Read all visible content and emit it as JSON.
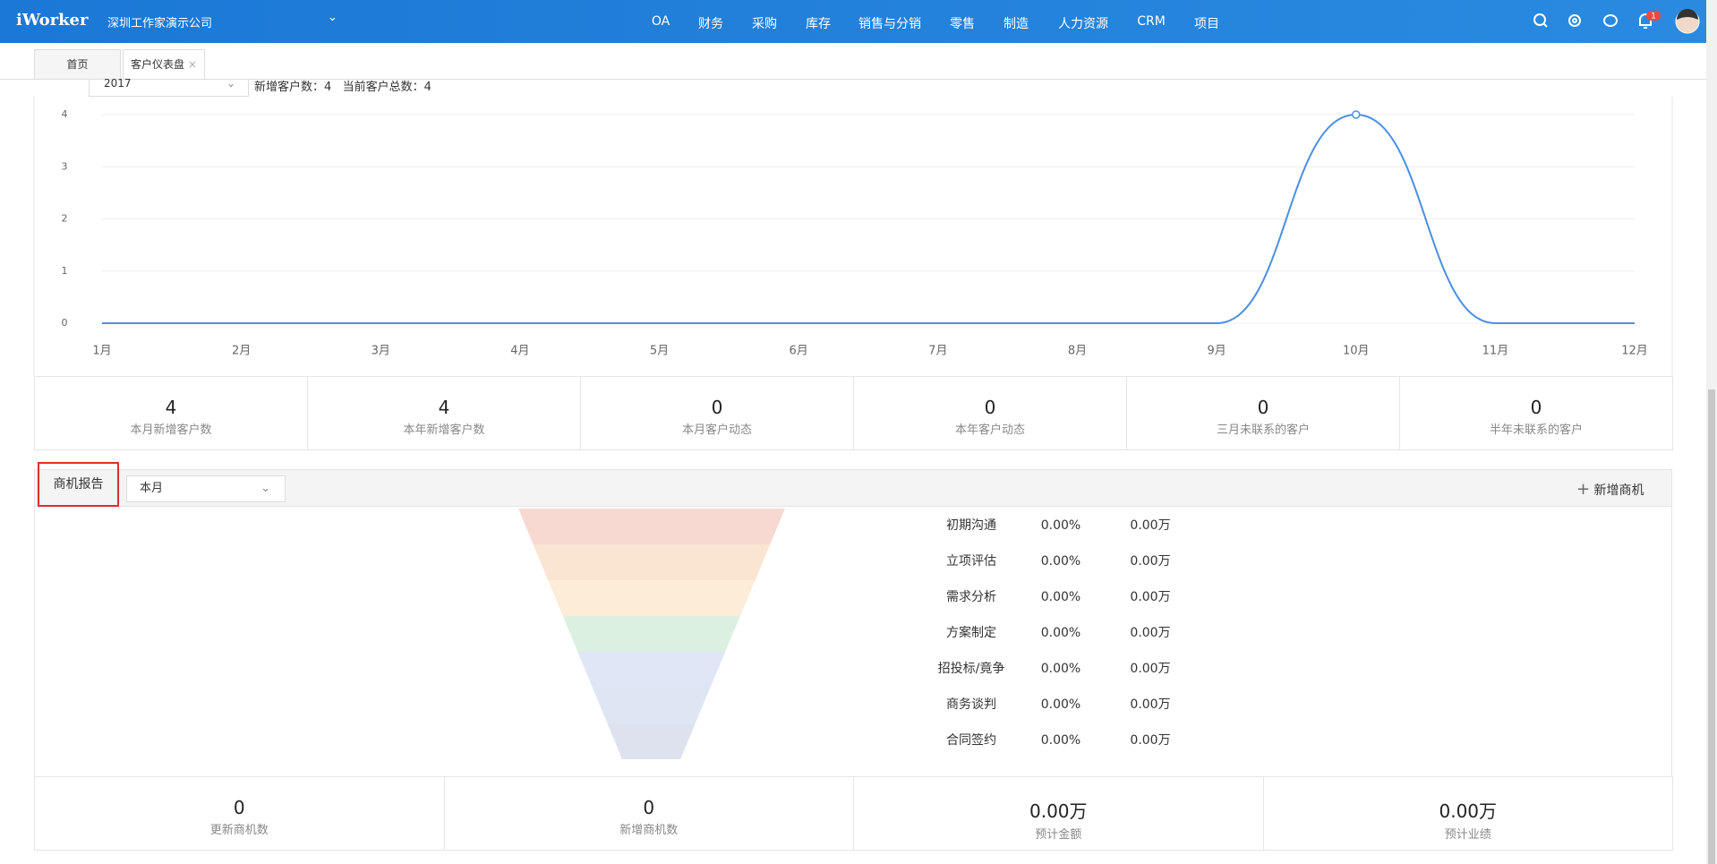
{
  "header": {
    "logo": "iWorker",
    "company": "深圳工作家演示公司",
    "nav": [
      "OA",
      "财务",
      "采购",
      "库存",
      "销售与分销",
      "零售",
      "制造",
      "人力资源",
      "CRM",
      "项目"
    ],
    "badge": "1"
  },
  "tabs": [
    "首页",
    "客户仪表盘"
  ],
  "filter": {
    "year": "2017",
    "summary": "新增客户数：4   当前客户总数：4"
  },
  "chart_data": {
    "type": "line",
    "categories": [
      "1月",
      "2月",
      "3月",
      "4月",
      "5月",
      "6月",
      "7月",
      "8月",
      "9月",
      "10月",
      "11月",
      "12月"
    ],
    "values": [
      0,
      0,
      0,
      0,
      0,
      0,
      0,
      0,
      0,
      4,
      0,
      0
    ],
    "color": "#4a90e2",
    "ylim": [
      0,
      4
    ],
    "yticks": [
      0,
      1,
      2,
      3,
      4
    ],
    "grid": true
  },
  "customer_stats": [
    {
      "value": "4",
      "label": "本月新增客户数"
    },
    {
      "value": "4",
      "label": "本年新增客户数"
    },
    {
      "value": "0",
      "label": "本月客户动态"
    },
    {
      "value": "0",
      "label": "本年客户动态"
    },
    {
      "value": "0",
      "label": "三月未联系的客户"
    },
    {
      "value": "0",
      "label": "半年未联系的客户"
    }
  ],
  "opportunity": {
    "title": "商机报告",
    "period": "本月",
    "add": "新增商机",
    "stages": [
      {
        "name": "初期沟通",
        "rate": "0.00%",
        "amount": "0.00万"
      },
      {
        "name": "立项评估",
        "rate": "0.00%",
        "amount": "0.00万"
      },
      {
        "name": "需求分析",
        "rate": "0.00%",
        "amount": "0.00万"
      },
      {
        "name": "方案制定",
        "rate": "0.00%",
        "amount": "0.00万"
      },
      {
        "name": "招投标/竟争",
        "rate": "0.00%",
        "amount": "0.00万"
      },
      {
        "name": "商务谈判",
        "rate": "0.00%",
        "amount": "0.00万"
      },
      {
        "name": "合同签约",
        "rate": "0.00%",
        "amount": "0.00万"
      }
    ],
    "stats": [
      {
        "value": "0",
        "label": "更新商机数"
      },
      {
        "value": "0",
        "label": "新增商机数"
      },
      {
        "value": "0.00万",
        "label": "预计金额"
      },
      {
        "value": "0.00万",
        "label": "预计业绩"
      }
    ]
  }
}
